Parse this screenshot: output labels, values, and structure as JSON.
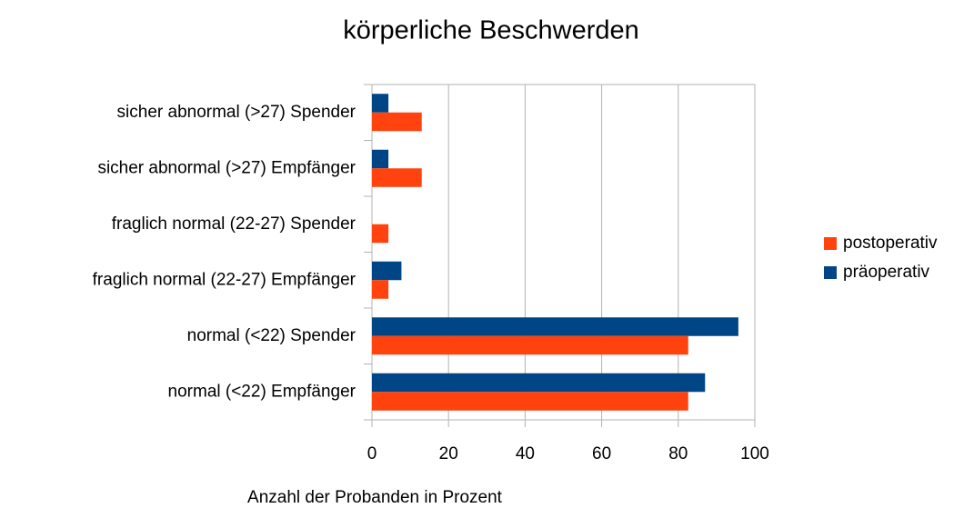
{
  "chart_data": {
    "type": "bar",
    "orientation": "horizontal",
    "title": "körperliche Beschwerden",
    "x_label": "Anzahl der Probanden in Prozent",
    "categories": [
      "sicher abnormal (>27) Spender",
      "sicher abnormal (>27) Empfänger",
      "fraglich normal (22-27) Spender",
      "fraglich normal (22-27) Empfänger",
      "normal (<22) Spender",
      "normal (<22) Empfänger"
    ],
    "series": [
      {
        "name": "postoperativ",
        "color": "#ff420e",
        "values": [
          13.0,
          13.0,
          4.3,
          4.3,
          82.6,
          82.6
        ]
      },
      {
        "name": "präoperativ",
        "color": "#004586",
        "values": [
          4.3,
          4.3,
          0,
          7.7,
          95.7,
          87.0
        ]
      }
    ],
    "xlim": [
      0,
      100
    ],
    "xticks": [
      0,
      20,
      40,
      60,
      80,
      100
    ],
    "grid": true,
    "legend": "right"
  }
}
